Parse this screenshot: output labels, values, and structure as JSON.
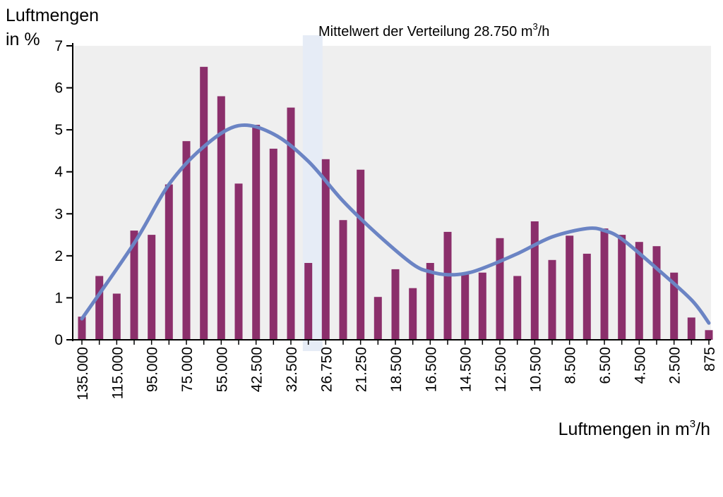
{
  "chart_data": {
    "type": "bar",
    "ylabel_lines": [
      "Luftmengen",
      "in %"
    ],
    "xlabel": {
      "text": "Luftmengen in m",
      "sup": "3",
      "tail": "/h"
    },
    "annotation": {
      "text": "Mittelwert der Verteilung 28.750 m",
      "sup": "3",
      "tail": "/h"
    },
    "mean_band_position": 13.25,
    "ylim": [
      0,
      7
    ],
    "yticks": [
      "0",
      "1",
      "2",
      "3",
      "4",
      "5",
      "6",
      "7"
    ],
    "categories": [
      "135.000",
      "",
      "115.000",
      "",
      "95.000",
      "",
      "75.000",
      "",
      "55.000",
      "",
      "42.500",
      "",
      "32.500",
      "",
      "26.750",
      "",
      "21.250",
      "",
      "18.500",
      "",
      "16.500",
      "",
      "14.500",
      "",
      "12.500",
      "",
      "10.500",
      "",
      "8.500",
      "",
      "6.500",
      "",
      "4.500",
      "",
      "2.500",
      "",
      "875"
    ],
    "values": [
      0.55,
      1.52,
      1.1,
      2.6,
      2.5,
      3.7,
      4.73,
      6.5,
      5.8,
      3.72,
      5.12,
      4.55,
      5.53,
      1.83,
      4.3,
      2.85,
      4.05,
      1.02,
      1.68,
      1.23,
      1.83,
      2.57,
      1.58,
      1.6,
      2.42,
      1.52,
      2.82,
      1.9,
      2.48,
      2.05,
      2.65,
      2.5,
      2.33,
      2.23,
      1.6,
      0.53,
      0.23
    ],
    "trend": {
      "x": [
        0,
        3,
        5,
        7,
        9,
        11,
        13,
        15,
        17,
        19,
        20,
        21,
        22,
        23,
        25,
        27,
        29,
        30,
        31,
        33,
        35,
        36
      ],
      "y": [
        0.5,
        2.3,
        3.7,
        4.6,
        5.1,
        4.9,
        4.25,
        3.3,
        2.5,
        1.8,
        1.62,
        1.55,
        1.58,
        1.7,
        2.05,
        2.45,
        2.65,
        2.6,
        2.4,
        1.7,
        0.95,
        0.4
      ]
    },
    "colors": {
      "bars": "#8B2F6B",
      "trend": "#6B84C4",
      "plot_bg": "#EFEFEF",
      "mean_band": "#E6ECF6"
    }
  }
}
